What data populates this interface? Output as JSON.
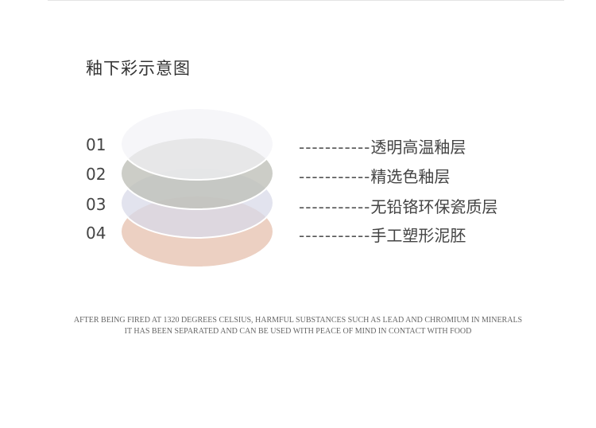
{
  "title": "釉下彩示意图",
  "layers": [
    {
      "number": "01",
      "label": "透明高温釉层",
      "color": "#f4f4f8"
    },
    {
      "number": "02",
      "label": "精选色釉层",
      "color": "#c6c8c1"
    },
    {
      "number": "03",
      "label": "无铅铬环保瓷质层",
      "color": "#dcdde9"
    },
    {
      "number": "04",
      "label": "手工塑形泥胚",
      "color": "#ecd0c2"
    }
  ],
  "connector": "-----------",
  "caption": {
    "line1": "AFTER BEING FIRED AT 1320 DEGREES CELSIUS, HARMFUL SUBSTANCES SUCH AS LEAD AND CHROMIUM IN MINERALS",
    "line2": "IT HAS BEEN SEPARATED AND CAN BE USED WITH PEACE OF MIND IN CONTACT WITH FOOD"
  }
}
